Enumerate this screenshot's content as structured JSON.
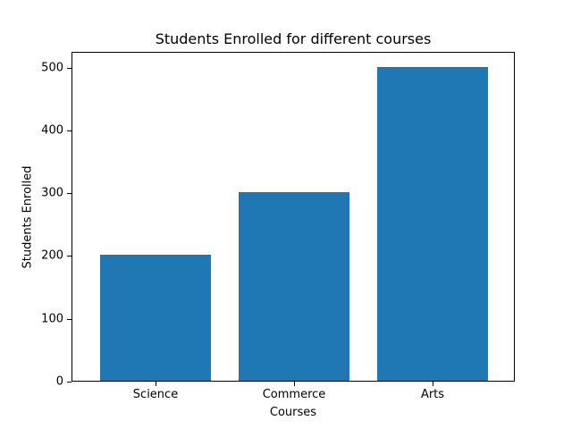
{
  "chart_data": {
    "type": "bar",
    "title": "Students Enrolled for different courses",
    "xlabel": "Courses",
    "ylabel": "Students Enrolled",
    "categories": [
      "Science",
      "Commerce",
      "Arts"
    ],
    "values": [
      200,
      300,
      500
    ],
    "ylim": [
      0,
      525
    ],
    "yticks": [
      0,
      100,
      200,
      300,
      400,
      500
    ],
    "bar_color": "#1f77b4",
    "grid": false,
    "legend": null
  }
}
